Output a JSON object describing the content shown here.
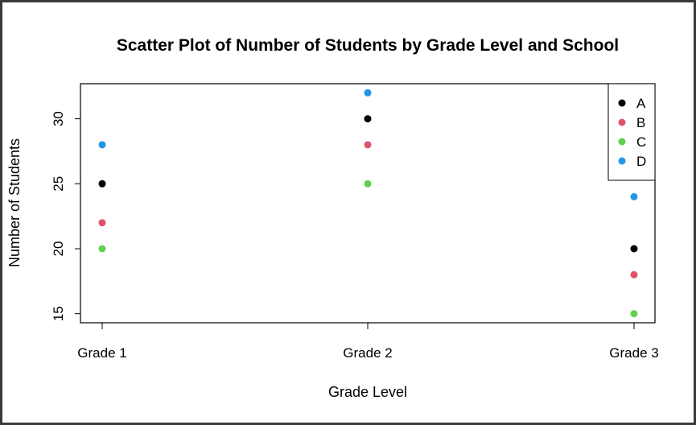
{
  "chart_data": {
    "type": "scatter",
    "title": "Scatter Plot of Number of Students by Grade Level and School",
    "xlabel": "Grade Level",
    "ylabel": "Number of Students",
    "categories": [
      "Grade 1",
      "Grade 2",
      "Grade 3"
    ],
    "ylim": [
      14.3,
      32.7
    ],
    "yticks": [
      15,
      20,
      25,
      30
    ],
    "grid": false,
    "legend_position": "top-right",
    "series": [
      {
        "name": "A",
        "color": "#000000",
        "values": [
          25,
          30,
          20
        ]
      },
      {
        "name": "B",
        "color": "#DF536B",
        "values": [
          22,
          28,
          18
        ]
      },
      {
        "name": "C",
        "color": "#61D04F",
        "values": [
          20,
          25,
          15
        ]
      },
      {
        "name": "D",
        "color": "#2297E6",
        "values": [
          28,
          32,
          24
        ]
      }
    ]
  }
}
